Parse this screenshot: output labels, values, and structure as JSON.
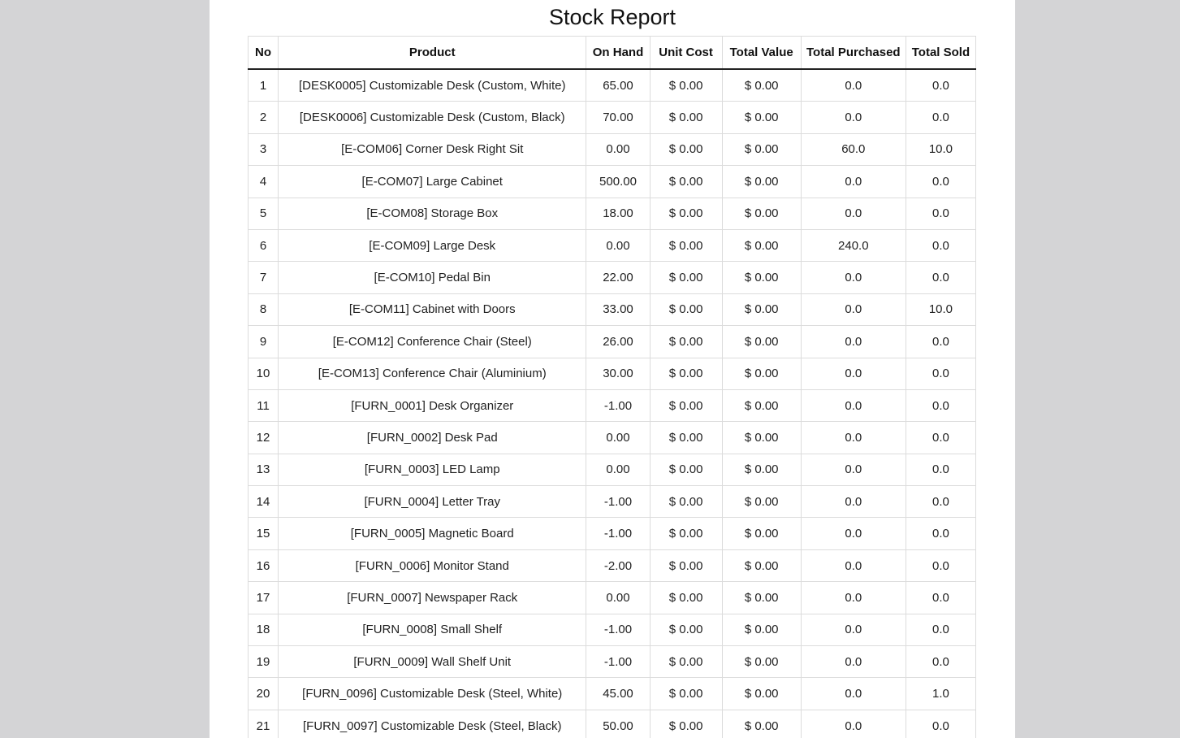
{
  "report": {
    "title": "Stock Report",
    "columns": [
      "No",
      "Product",
      "On Hand",
      "Unit Cost",
      "Total Value",
      "Total Purchased",
      "Total Sold"
    ],
    "rows": [
      [
        "1",
        "[DESK0005] Customizable Desk (Custom, White)",
        "65.00",
        "$ 0.00",
        "$ 0.00",
        "0.0",
        "0.0"
      ],
      [
        "2",
        "[DESK0006] Customizable Desk (Custom, Black)",
        "70.00",
        "$ 0.00",
        "$ 0.00",
        "0.0",
        "0.0"
      ],
      [
        "3",
        "[E-COM06] Corner Desk Right Sit",
        "0.00",
        "$ 0.00",
        "$ 0.00",
        "60.0",
        "10.0"
      ],
      [
        "4",
        "[E-COM07] Large Cabinet",
        "500.00",
        "$ 0.00",
        "$ 0.00",
        "0.0",
        "0.0"
      ],
      [
        "5",
        "[E-COM08] Storage Box",
        "18.00",
        "$ 0.00",
        "$ 0.00",
        "0.0",
        "0.0"
      ],
      [
        "6",
        "[E-COM09] Large Desk",
        "0.00",
        "$ 0.00",
        "$ 0.00",
        "240.0",
        "0.0"
      ],
      [
        "7",
        "[E-COM10] Pedal Bin",
        "22.00",
        "$ 0.00",
        "$ 0.00",
        "0.0",
        "0.0"
      ],
      [
        "8",
        "[E-COM11] Cabinet with Doors",
        "33.00",
        "$ 0.00",
        "$ 0.00",
        "0.0",
        "10.0"
      ],
      [
        "9",
        "[E-COM12] Conference Chair (Steel)",
        "26.00",
        "$ 0.00",
        "$ 0.00",
        "0.0",
        "0.0"
      ],
      [
        "10",
        "[E-COM13] Conference Chair (Aluminium)",
        "30.00",
        "$ 0.00",
        "$ 0.00",
        "0.0",
        "0.0"
      ],
      [
        "11",
        "[FURN_0001] Desk Organizer",
        "-1.00",
        "$ 0.00",
        "$ 0.00",
        "0.0",
        "0.0"
      ],
      [
        "12",
        "[FURN_0002] Desk Pad",
        "0.00",
        "$ 0.00",
        "$ 0.00",
        "0.0",
        "0.0"
      ],
      [
        "13",
        "[FURN_0003] LED Lamp",
        "0.00",
        "$ 0.00",
        "$ 0.00",
        "0.0",
        "0.0"
      ],
      [
        "14",
        "[FURN_0004] Letter Tray",
        "-1.00",
        "$ 0.00",
        "$ 0.00",
        "0.0",
        "0.0"
      ],
      [
        "15",
        "[FURN_0005] Magnetic Board",
        "-1.00",
        "$ 0.00",
        "$ 0.00",
        "0.0",
        "0.0"
      ],
      [
        "16",
        "[FURN_0006] Monitor Stand",
        "-2.00",
        "$ 0.00",
        "$ 0.00",
        "0.0",
        "0.0"
      ],
      [
        "17",
        "[FURN_0007] Newspaper Rack",
        "0.00",
        "$ 0.00",
        "$ 0.00",
        "0.0",
        "0.0"
      ],
      [
        "18",
        "[FURN_0008] Small Shelf",
        "-1.00",
        "$ 0.00",
        "$ 0.00",
        "0.0",
        "0.0"
      ],
      [
        "19",
        "[FURN_0009] Wall Shelf Unit",
        "-1.00",
        "$ 0.00",
        "$ 0.00",
        "0.0",
        "0.0"
      ],
      [
        "20",
        "[FURN_0096] Customizable Desk (Steel, White)",
        "45.00",
        "$ 0.00",
        "$ 0.00",
        "0.0",
        "1.0"
      ],
      [
        "21",
        "[FURN_0097] Customizable Desk (Steel, Black)",
        "50.00",
        "$ 0.00",
        "$ 0.00",
        "0.0",
        "0.0"
      ]
    ]
  }
}
